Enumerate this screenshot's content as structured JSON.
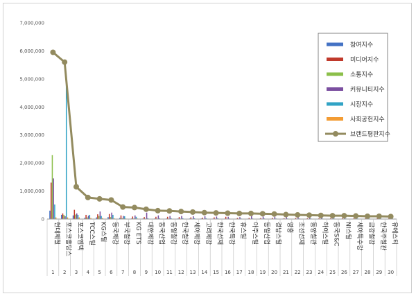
{
  "chart_data": {
    "type": "bar",
    "title": "",
    "xlabel": "",
    "ylabel": "",
    "ylim": [
      0,
      7000000
    ],
    "yticks": [
      "0",
      "1,000,000",
      "2,000,000",
      "3,000,000",
      "4,000,000",
      "5,000,000",
      "6,000,000",
      "7,000,000"
    ],
    "grid": false,
    "legend_position": "top-right",
    "x_numbers": [
      "1",
      "2",
      "3",
      "4",
      "5",
      "6",
      "7",
      "8",
      "9",
      "10",
      "11",
      "12",
      "13",
      "14",
      "15",
      "16",
      "17",
      "18",
      "19",
      "20",
      "21",
      "22",
      "23",
      "24",
      "25",
      "26",
      "27",
      "28",
      "29",
      "30"
    ],
    "categories": [
      "현대제철",
      "포스코홀딩스",
      "포스코엠텍",
      "TCC스틸",
      "KG스틸",
      "동국제강",
      "부국철강",
      "KG ETS",
      "대한제강",
      "동국산업",
      "동일철강",
      "한국철강",
      "세아제강",
      "고려제강",
      "한국선재",
      "한국특강",
      "휴스틸",
      "아주스틸",
      "동일산업",
      "경남스틸",
      "영흥",
      "조선선재",
      "동양철관",
      "하이스틸",
      "동국S&C",
      "NI스틸",
      "세아특수강",
      "금강철강",
      "한국주철관",
      "유에스티"
    ],
    "series": [
      {
        "name": "참여지수",
        "type": "bar",
        "color": "#4472C4",
        "values": [
          300000,
          150000,
          130000,
          50000,
          60000,
          70000,
          40000,
          20000,
          20000,
          20000,
          20000,
          20000,
          20000,
          20000,
          15000,
          15000,
          15000,
          15000,
          15000,
          15000,
          15000,
          10000,
          10000,
          10000,
          10000,
          10000,
          10000,
          10000,
          10000,
          10000
        ]
      },
      {
        "name": "미디어지수",
        "type": "bar",
        "color": "#C0392B",
        "values": [
          1300000,
          200000,
          330000,
          150000,
          170000,
          180000,
          130000,
          90000,
          70000,
          80000,
          80000,
          70000,
          60000,
          50000,
          60000,
          80000,
          40000,
          40000,
          40000,
          40000,
          30000,
          40000,
          30000,
          30000,
          30000,
          30000,
          30000,
          25000,
          25000,
          25000
        ]
      },
      {
        "name": "소통지수",
        "type": "bar",
        "color": "#8BBF4A",
        "values": [
          2280000,
          150000,
          160000,
          60000,
          110000,
          70000,
          30000,
          20000,
          15000,
          15000,
          15000,
          15000,
          15000,
          10000,
          10000,
          10000,
          10000,
          10000,
          10000,
          10000,
          10000,
          10000,
          10000,
          10000,
          10000,
          10000,
          10000,
          10000,
          10000,
          10000
        ]
      },
      {
        "name": "커뮤니티지수",
        "type": "bar",
        "color": "#7B4FA0",
        "values": [
          1450000,
          100000,
          200000,
          120000,
          270000,
          230000,
          110000,
          130000,
          230000,
          130000,
          110000,
          110000,
          100000,
          100000,
          90000,
          80000,
          70000,
          100000,
          90000,
          80000,
          70000,
          70000,
          60000,
          60000,
          70000,
          60000,
          50000,
          60000,
          50000,
          40000
        ]
      },
      {
        "name": "시장지수",
        "type": "bar",
        "color": "#31A3C5",
        "values": [
          520000,
          4800000,
          150000,
          150000,
          110000,
          150000,
          100000,
          80000,
          30000,
          30000,
          30000,
          30000,
          30000,
          30000,
          30000,
          20000,
          20000,
          20000,
          20000,
          20000,
          20000,
          20000,
          20000,
          20000,
          20000,
          20000,
          20000,
          20000,
          20000,
          20000
        ]
      },
      {
        "name": "사회공헌지수",
        "type": "bar",
        "color": "#F39C34",
        "values": [
          60000,
          60000,
          60000,
          40000,
          40000,
          30000,
          20000,
          20000,
          10000,
          10000,
          10000,
          10000,
          10000,
          10000,
          10000,
          10000,
          10000,
          10000,
          10000,
          10000,
          10000,
          10000,
          10000,
          10000,
          10000,
          10000,
          10000,
          10000,
          10000,
          10000
        ]
      },
      {
        "name": "브랜드평판지수",
        "type": "line",
        "color": "#938B5F",
        "values": [
          5950000,
          5600000,
          1150000,
          770000,
          720000,
          680000,
          430000,
          410000,
          350000,
          300000,
          290000,
          270000,
          250000,
          230000,
          220000,
          210000,
          200000,
          200000,
          190000,
          180000,
          160000,
          150000,
          140000,
          130000,
          120000,
          120000,
          110000,
          100000,
          100000,
          90000
        ]
      }
    ]
  }
}
